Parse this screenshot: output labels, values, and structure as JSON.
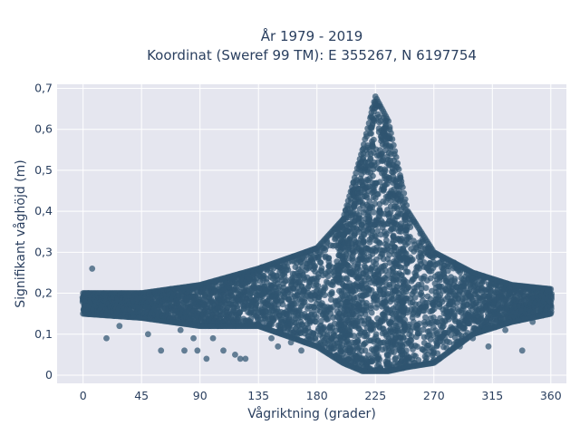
{
  "chart_data": {
    "type": "scatter",
    "title_line1": "År 1979 - 2019",
    "title_line2": "Koordinat (Sweref 99 TM): E 355267, N 6197754",
    "xlabel": "Vågriktning (grader)",
    "ylabel": "Signifikant våghöjd (m)",
    "xlim": [
      -20,
      372
    ],
    "ylim": [
      -0.02,
      0.71
    ],
    "x_ticks": [
      0,
      45,
      90,
      135,
      180,
      225,
      270,
      315,
      360
    ],
    "x_tick_labels": [
      "0",
      "45",
      "90",
      "135",
      "180",
      "225",
      "270",
      "315",
      "360"
    ],
    "y_ticks": [
      0,
      0.1,
      0.2,
      0.3,
      0.4,
      0.5,
      0.6,
      0.7
    ],
    "y_tick_labels": [
      "0",
      "0,1",
      "0,2",
      "0,3",
      "0,4",
      "0,5",
      "0,6",
      "0,7"
    ],
    "grid": true,
    "marker_color": "#2f5570",
    "plot_bg": "#e5e6ef",
    "series": [
      {
        "envelope": [
          {
            "x": 0,
            "ymin": 0.15,
            "ymax": 0.2
          },
          {
            "x": 45,
            "ymin": 0.14,
            "ymax": 0.2
          },
          {
            "x": 90,
            "ymin": 0.12,
            "ymax": 0.22
          },
          {
            "x": 135,
            "ymin": 0.12,
            "ymax": 0.26
          },
          {
            "x": 180,
            "ymin": 0.07,
            "ymax": 0.31
          },
          {
            "x": 200,
            "ymin": 0.03,
            "ymax": 0.38
          },
          {
            "x": 215,
            "ymin": 0.01,
            "ymax": 0.55
          },
          {
            "x": 225,
            "ymin": 0.01,
            "ymax": 0.68
          },
          {
            "x": 235,
            "ymin": 0.01,
            "ymax": 0.62
          },
          {
            "x": 250,
            "ymin": 0.02,
            "ymax": 0.4
          },
          {
            "x": 270,
            "ymin": 0.03,
            "ymax": 0.3
          },
          {
            "x": 300,
            "ymin": 0.1,
            "ymax": 0.25
          },
          {
            "x": 330,
            "ymin": 0.13,
            "ymax": 0.22
          },
          {
            "x": 360,
            "ymin": 0.15,
            "ymax": 0.21
          }
        ],
        "outliers": [
          {
            "x": 7,
            "y": 0.26
          },
          {
            "x": 18,
            "y": 0.09
          },
          {
            "x": 28,
            "y": 0.12
          },
          {
            "x": 50,
            "y": 0.1
          },
          {
            "x": 60,
            "y": 0.06
          },
          {
            "x": 75,
            "y": 0.11
          },
          {
            "x": 78,
            "y": 0.06
          },
          {
            "x": 85,
            "y": 0.09
          },
          {
            "x": 88,
            "y": 0.06
          },
          {
            "x": 95,
            "y": 0.04
          },
          {
            "x": 100,
            "y": 0.09
          },
          {
            "x": 108,
            "y": 0.06
          },
          {
            "x": 117,
            "y": 0.05
          },
          {
            "x": 121,
            "y": 0.04
          },
          {
            "x": 125,
            "y": 0.04
          },
          {
            "x": 145,
            "y": 0.09
          },
          {
            "x": 150,
            "y": 0.07
          },
          {
            "x": 160,
            "y": 0.08
          },
          {
            "x": 168,
            "y": 0.06
          },
          {
            "x": 282,
            "y": 0.11
          },
          {
            "x": 290,
            "y": 0.07
          },
          {
            "x": 300,
            "y": 0.09
          },
          {
            "x": 312,
            "y": 0.07
          },
          {
            "x": 325,
            "y": 0.11
          },
          {
            "x": 338,
            "y": 0.06
          },
          {
            "x": 346,
            "y": 0.13
          }
        ]
      }
    ]
  }
}
